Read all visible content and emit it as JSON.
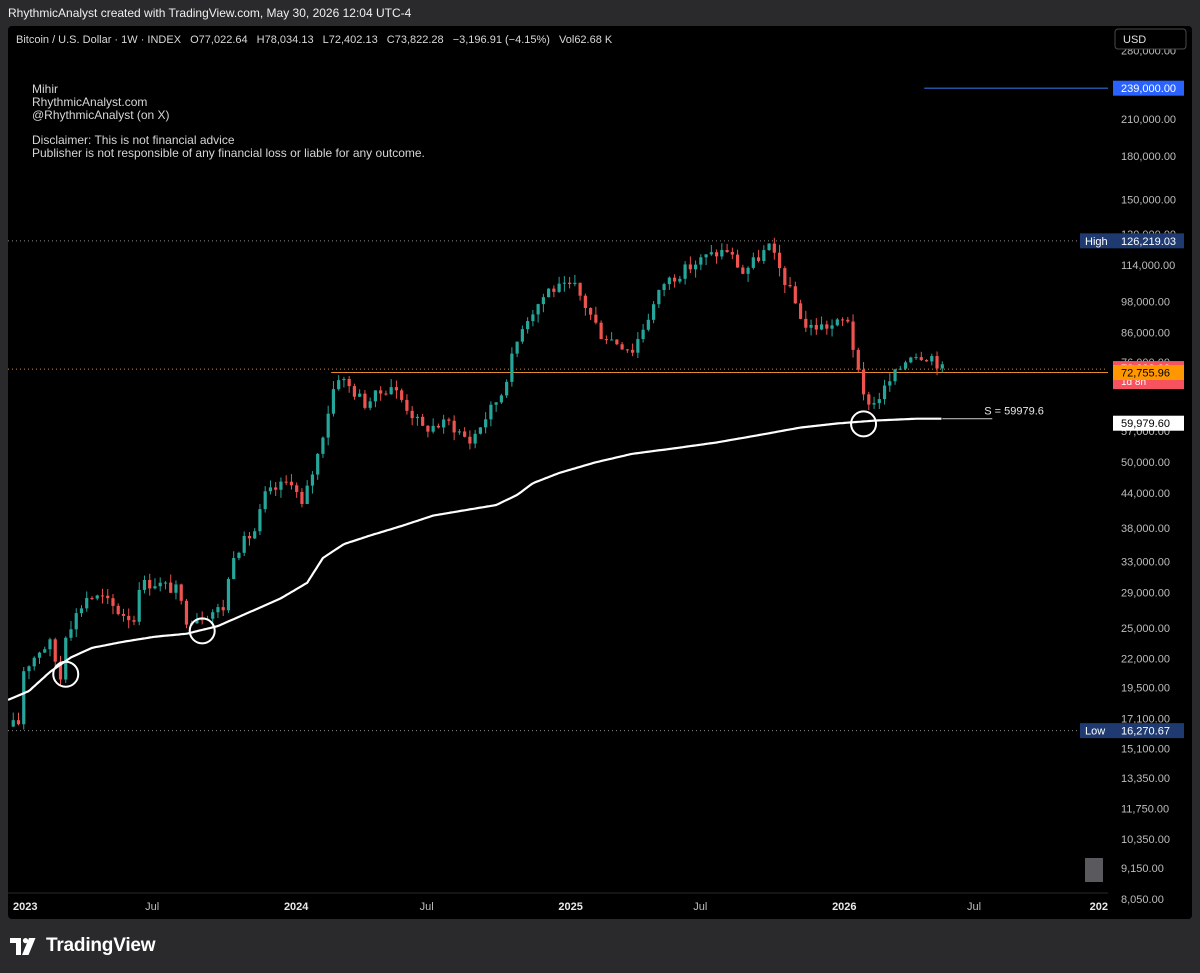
{
  "attribution": "RhythmicAnalyst created with TradingView.com, May 30, 2026 12:04 UTC-4",
  "footer": {
    "logo_text": "TradingView"
  },
  "legend": {
    "symbol": "Bitcoin / U.S. Dollar · 1W · INDEX",
    "o_label": "O",
    "o_value": "77,022.64",
    "h_label": "H",
    "h_value": "78,034.13",
    "l_label": "L",
    "l_value": "72,402.13",
    "c_label": "C",
    "c_value": "73,822.28",
    "change": "−3,196.91 (−4.15%)",
    "vol_label": "Vol",
    "vol_value": "62.68 K"
  },
  "notes": [
    "Mihir",
    "RhythmicAnalyst.com",
    "@RhythmicAnalyst (on X)",
    "",
    "Disclaimer: This is not financial advice",
    "Publisher is not responsible of any financial loss or liable for any outcome."
  ],
  "colors": {
    "up": "#26a69a",
    "down": "#ef5350",
    "ma": "#ffffff",
    "price_line": "#f5a623",
    "target_line": "#2f6fd6",
    "badge_price": "#f7525f",
    "badge_level": "#ff9800",
    "badge_blue": "#2962ff",
    "badge_navy": "#1e3a70"
  },
  "chart_data": {
    "type": "candlestick",
    "title": "Bitcoin / U.S. Dollar · 1W · INDEX",
    "currency": "USD",
    "y_scale": "log",
    "ylim": [
      7400,
      310000
    ],
    "xlim": [
      "2022-12-26",
      "2027-01-01"
    ],
    "grid": false,
    "x_ticks": [
      {
        "date": "2023-01-01",
        "label": "2023",
        "bold": true
      },
      {
        "date": "2023-07-01",
        "label": "Jul",
        "bold": false
      },
      {
        "date": "2024-01-01",
        "label": "2024",
        "bold": true
      },
      {
        "date": "2024-07-01",
        "label": "Jul",
        "bold": false
      },
      {
        "date": "2025-01-01",
        "label": "2025",
        "bold": true
      },
      {
        "date": "2025-07-01",
        "label": "Jul",
        "bold": false
      },
      {
        "date": "2026-01-01",
        "label": "2026",
        "bold": true
      },
      {
        "date": "2026-07-01",
        "label": "Jul",
        "bold": false
      },
      {
        "date": "2027-01-01",
        "label": "202",
        "bold": true
      }
    ],
    "y_ticks": [
      {
        "value": 280000,
        "label": "280,000.00"
      },
      {
        "value": 210000,
        "label": "210,000.00"
      },
      {
        "value": 180000,
        "label": "180,000.00"
      },
      {
        "value": 150000,
        "label": "150,000.00"
      },
      {
        "value": 130000,
        "label": "130,000.00"
      },
      {
        "value": 114000,
        "label": "114,000.00"
      },
      {
        "value": 98000,
        "label": "98,000.00"
      },
      {
        "value": 86000,
        "label": "86,000.00"
      },
      {
        "value": 76000,
        "label": "76,000.00"
      },
      {
        "value": 57000,
        "label": "57,000.00"
      },
      {
        "value": 50000,
        "label": "50,000.00"
      },
      {
        "value": 44000,
        "label": "44,000.00"
      },
      {
        "value": 38000,
        "label": "38,000.00"
      },
      {
        "value": 33000,
        "label": "33,000.00"
      },
      {
        "value": 29000,
        "label": "29,000.00"
      },
      {
        "value": 25000,
        "label": "25,000.00"
      },
      {
        "value": 22000,
        "label": "22,000.00"
      },
      {
        "value": 19500,
        "label": "19,500.00"
      },
      {
        "value": 17100,
        "label": "17,100.00"
      },
      {
        "value": 15100,
        "label": "15,100.00"
      },
      {
        "value": 13350,
        "label": "13,350.00"
      },
      {
        "value": 11750,
        "label": "11,750.00"
      },
      {
        "value": 10350,
        "label": "10,350.00"
      },
      {
        "value": 9150,
        "label": "9,150.00"
      },
      {
        "value": 8050,
        "label": "8,050.00"
      }
    ],
    "badges": [
      {
        "value": 239000,
        "label": "239,000.00",
        "kind": "blue"
      },
      {
        "value": 126219.03,
        "label": "126,219.03",
        "tag": "High",
        "kind": "navy"
      },
      {
        "value": 73822.28,
        "label": "73,822.28",
        "sub": "1d 8h",
        "kind": "price"
      },
      {
        "value": 72755.96,
        "label": "72,755.96",
        "kind": "level"
      },
      {
        "value": 59979.6,
        "label": "59,979.60",
        "kind": "white"
      },
      {
        "value": 16270.67,
        "label": "16,270.67",
        "tag": "Low",
        "kind": "navy"
      }
    ],
    "horizontal_lines": [
      {
        "value": 126219.03,
        "style": "dotted"
      },
      {
        "value": 73822.28,
        "style": "dotted-orange"
      },
      {
        "value": 72755.96,
        "style": "solid-orange",
        "from": "2024-03-01"
      },
      {
        "value": 16270.67,
        "style": "dotted"
      },
      {
        "value": 239000,
        "style": "solid-blue",
        "from": "2026-05-01"
      }
    ],
    "ma_label": {
      "text": "S =  59979.6",
      "value": 59979.6
    },
    "ma_anchors": [
      [
        "2022-12-26",
        18500
      ],
      [
        "2023-01-23",
        19200
      ],
      [
        "2023-02-20",
        20800
      ],
      [
        "2023-03-20",
        22100
      ],
      [
        "2023-04-17",
        23000
      ],
      [
        "2023-05-29",
        23600
      ],
      [
        "2023-07-10",
        24100
      ],
      [
        "2023-08-21",
        24400
      ],
      [
        "2023-10-02",
        25200
      ],
      [
        "2023-11-13",
        26700
      ],
      [
        "2023-12-25",
        28300
      ],
      [
        "2024-01-29",
        30200
      ],
      [
        "2024-02-19",
        33500
      ],
      [
        "2024-03-18",
        35500
      ],
      [
        "2024-04-22",
        36800
      ],
      [
        "2024-06-03",
        38300
      ],
      [
        "2024-07-15",
        40000
      ],
      [
        "2024-08-26",
        40900
      ],
      [
        "2024-10-07",
        41800
      ],
      [
        "2024-11-04",
        43600
      ],
      [
        "2024-11-25",
        45800
      ],
      [
        "2024-12-30",
        47800
      ],
      [
        "2025-02-17",
        50000
      ],
      [
        "2025-04-07",
        51800
      ],
      [
        "2025-06-02",
        53000
      ],
      [
        "2025-07-28",
        54300
      ],
      [
        "2025-09-22",
        56000
      ],
      [
        "2025-11-17",
        57800
      ],
      [
        "2026-01-05",
        58800
      ],
      [
        "2026-02-23",
        59500
      ],
      [
        "2026-04-20",
        59979.6
      ],
      [
        "2026-05-25",
        59979.6
      ]
    ],
    "price_anchors": [
      [
        "2022-12-26",
        16550
      ],
      [
        "2023-01-09",
        16800
      ],
      [
        "2023-01-16",
        21000
      ],
      [
        "2023-02-06",
        22800
      ],
      [
        "2023-02-20",
        23400
      ],
      [
        "2023-03-06",
        20300
      ],
      [
        "2023-03-13",
        24500
      ],
      [
        "2023-04-10",
        28500
      ],
      [
        "2023-05-01",
        28300
      ],
      [
        "2023-05-22",
        26800
      ],
      [
        "2023-06-12",
        25900
      ],
      [
        "2023-06-19",
        30000
      ],
      [
        "2023-07-10",
        30200
      ],
      [
        "2023-08-07",
        29300
      ],
      [
        "2023-08-21",
        26000
      ],
      [
        "2023-09-11",
        26400
      ],
      [
        "2023-10-09",
        27200
      ],
      [
        "2023-10-23",
        34300
      ],
      [
        "2023-11-20",
        37500
      ],
      [
        "2023-12-04",
        43500
      ],
      [
        "2024-01-08",
        46500
      ],
      [
        "2024-01-22",
        41500
      ],
      [
        "2024-02-12",
        51500
      ],
      [
        "2024-03-04",
        68000
      ],
      [
        "2024-03-11",
        71800
      ],
      [
        "2024-04-15",
        64000
      ],
      [
        "2024-05-20",
        69000
      ],
      [
        "2024-07-01",
        57500
      ],
      [
        "2024-08-05",
        59000
      ],
      [
        "2024-09-02",
        54500
      ],
      [
        "2024-10-14",
        66800
      ],
      [
        "2024-11-11",
        89000
      ],
      [
        "2024-12-16",
        103000
      ],
      [
        "2025-01-20",
        104000
      ],
      [
        "2025-02-24",
        85500
      ],
      [
        "2025-04-07",
        80000
      ],
      [
        "2025-05-19",
        106000
      ],
      [
        "2025-07-14",
        118000
      ],
      [
        "2025-08-11",
        121500
      ],
      [
        "2025-09-01",
        110500
      ],
      [
        "2025-10-06",
        123000
      ],
      [
        "2025-11-03",
        102000
      ],
      [
        "2025-11-24",
        88000
      ],
      [
        "2025-12-29",
        88500
      ],
      [
        "2026-01-19",
        91000
      ],
      [
        "2026-02-02",
        72000
      ],
      [
        "2026-02-09",
        65500
      ],
      [
        "2026-02-23",
        64000
      ],
      [
        "2026-03-16",
        70000
      ],
      [
        "2026-04-13",
        79000
      ],
      [
        "2026-05-11",
        77800
      ],
      [
        "2026-05-25",
        73822.28
      ]
    ],
    "highlight_circles": [
      {
        "date": "2023-03-13",
        "value": 20600
      },
      {
        "date": "2023-09-11",
        "value": 24700
      },
      {
        "date": "2026-02-09",
        "value": 58700
      }
    ]
  }
}
